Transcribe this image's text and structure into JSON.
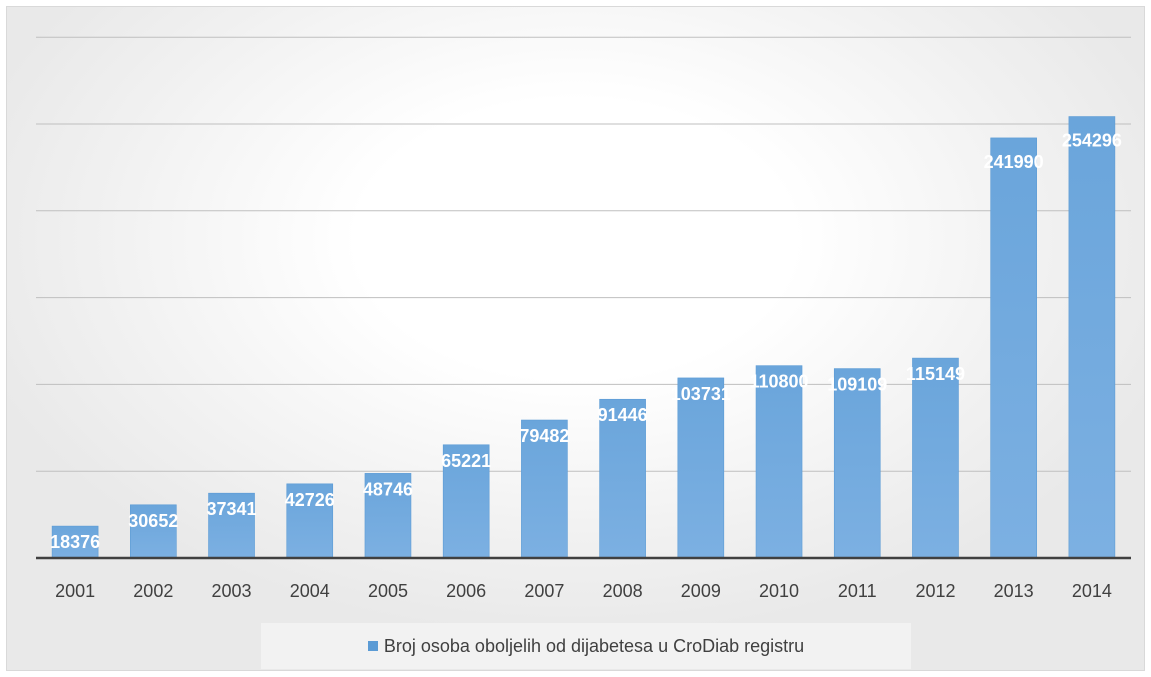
{
  "chart_data": {
    "type": "bar",
    "title": "",
    "xlabel": "",
    "ylabel": "",
    "categories": [
      "2001",
      "2002",
      "2003",
      "2004",
      "2005",
      "2006",
      "2007",
      "2008",
      "2009",
      "2010",
      "2011",
      "2012",
      "2013",
      "2014"
    ],
    "series": [
      {
        "name": "Broj osoba oboljelih od dijabetesa u CroDiab registru",
        "values": [
          18376,
          30652,
          37341,
          42726,
          48746,
          65221,
          79482,
          91446,
          103731,
          110800,
          109109,
          115149,
          241990,
          254296
        ],
        "data_labels": [
          "18376",
          "30652",
          "37341",
          "42726",
          "48746",
          "65221",
          "79482",
          "91446",
          "103731",
          "110800",
          "109109",
          "115149",
          "241990",
          "254296"
        ]
      }
    ],
    "ylim": [
      0,
      300000
    ],
    "y_gridlines": [
      50000,
      100000,
      150000,
      200000,
      250000,
      300000
    ],
    "y_tick_labels_shown": false,
    "grid": true,
    "legend_position": "bottom",
    "colors": {
      "bar": "#5b9bd5",
      "bar_light": "#7fb0e0",
      "grid": "#bfbfbf",
      "axis": "#404040",
      "data_label": "#ffffff"
    }
  }
}
